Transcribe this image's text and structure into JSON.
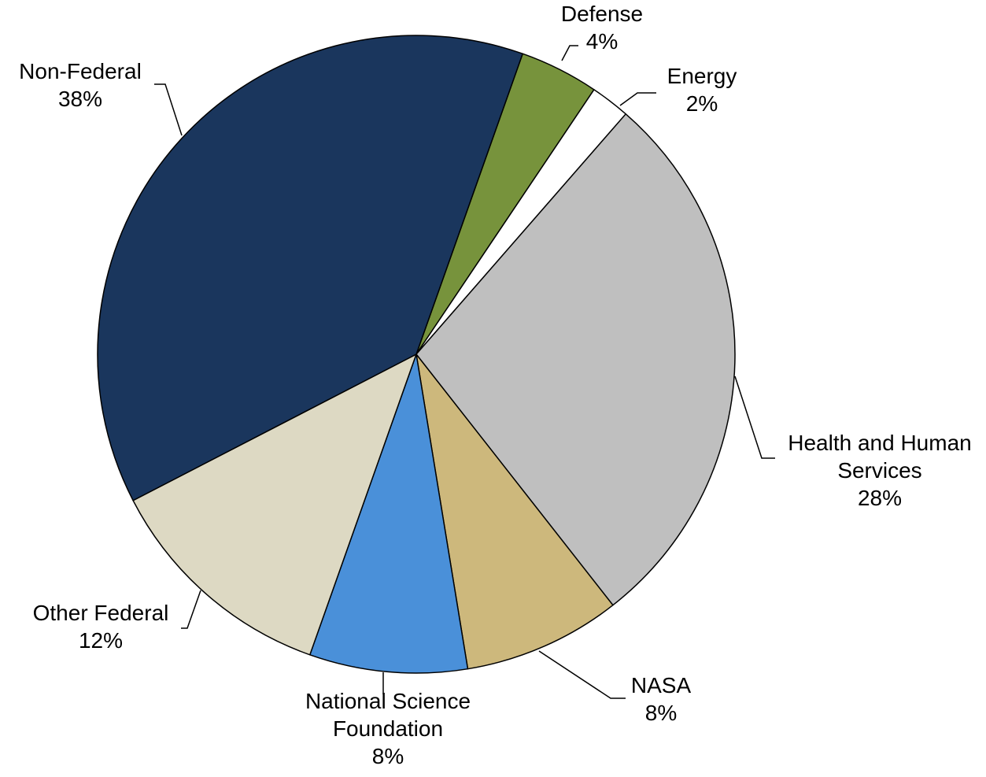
{
  "chart_data": {
    "type": "pie",
    "title": "",
    "unit": "%",
    "start_angle_deg": 19.5,
    "direction": "clockwise",
    "slices": [
      {
        "label": "Defense",
        "name_lines": [
          "Defense"
        ],
        "value": 4,
        "value_label": "4%",
        "color": "#77933C"
      },
      {
        "label": "Energy",
        "name_lines": [
          "Energy"
        ],
        "value": 2,
        "value_label": "2%",
        "color": "#FFFFFF"
      },
      {
        "label": "Health and Human Services",
        "name_lines": [
          "Health and Human",
          "Services"
        ],
        "value": 28,
        "value_label": "28%",
        "color": "#BFBFBF"
      },
      {
        "label": "NASA",
        "name_lines": [
          "NASA"
        ],
        "value": 8,
        "value_label": "8%",
        "color": "#CDB87C"
      },
      {
        "label": "National Science Foundation",
        "name_lines": [
          "National Science",
          "Foundation"
        ],
        "value": 8,
        "value_label": "8%",
        "color": "#4A90D9"
      },
      {
        "label": "Other Federal",
        "name_lines": [
          "Other Federal"
        ],
        "value": 12,
        "value_label": "12%",
        "color": "#DDD9C3"
      },
      {
        "label": "Non-Federal",
        "name_lines": [
          "Non-Federal"
        ],
        "value": 38,
        "value_label": "38%",
        "color": "#1A365D"
      }
    ]
  }
}
